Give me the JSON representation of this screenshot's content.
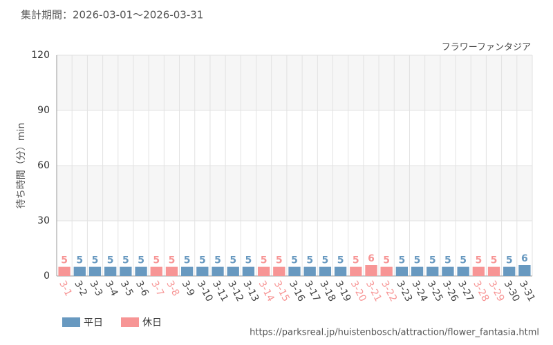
{
  "chart_data": {
    "type": "bar",
    "title": "集計期間：2026-03-01～2026-03-31",
    "subtitle": "フラワーファンタジア",
    "y_label": "待ち時間（分）min",
    "source": "https://parksreal.jp/huistenbosch/attraction/flower_fantasia.html",
    "categories": [
      "3-1",
      "3-2",
      "3-3",
      "3-4",
      "3-5",
      "3-6",
      "3-7",
      "3-8",
      "3-9",
      "3-10",
      "3-11",
      "3-12",
      "3-13",
      "3-14",
      "3-15",
      "3-16",
      "3-17",
      "3-18",
      "3-19",
      "3-20",
      "3-21",
      "3-22",
      "3-23",
      "3-24",
      "3-25",
      "3-26",
      "3-27",
      "3-28",
      "3-29",
      "3-30",
      "3-31"
    ],
    "series": [
      {
        "name": "平日",
        "color": "#6899c0",
        "values": [
          null,
          5,
          5,
          5,
          5,
          5,
          null,
          null,
          5,
          5,
          5,
          5,
          5,
          null,
          null,
          5,
          5,
          5,
          5,
          null,
          null,
          null,
          5,
          5,
          5,
          5,
          5,
          null,
          null,
          5,
          6
        ]
      },
      {
        "name": "休日",
        "color": "#f79595",
        "values": [
          5,
          null,
          null,
          null,
          null,
          null,
          5,
          5,
          null,
          null,
          null,
          null,
          null,
          5,
          5,
          null,
          null,
          null,
          null,
          5,
          6,
          5,
          null,
          null,
          null,
          null,
          null,
          5,
          5,
          null,
          null
        ]
      }
    ],
    "ylim": [
      0,
      120
    ],
    "yticks": [
      0,
      30,
      60,
      90,
      120
    ],
    "grid": true
  }
}
